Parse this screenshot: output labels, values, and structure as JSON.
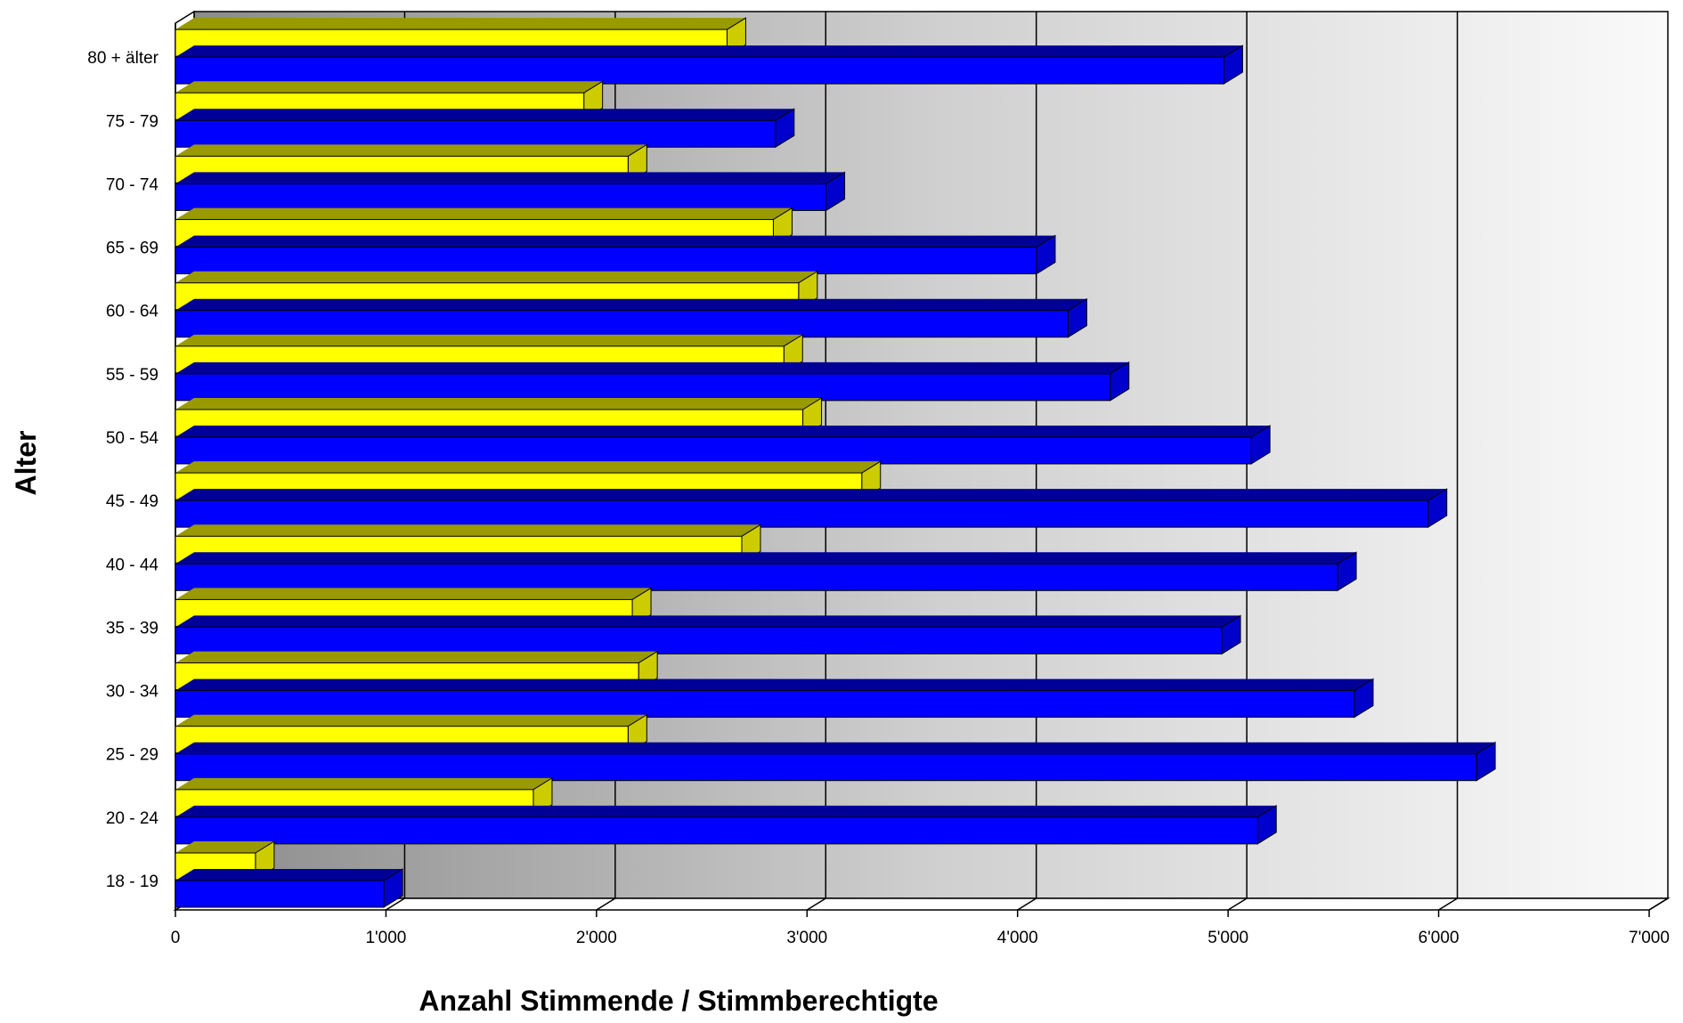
{
  "chart_data": {
    "type": "bar",
    "orientation": "horizontal",
    "style": "3d",
    "title": "",
    "xlabel": "Anzahl Stimmende / Stimmberechtigte",
    "ylabel": "Alter",
    "xlim": [
      0,
      7000
    ],
    "xticks": [
      0,
      1000,
      2000,
      3000,
      4000,
      5000,
      6000,
      7000
    ],
    "xtick_labels": [
      "0",
      "1'000",
      "2'000",
      "3'000",
      "4'000",
      "5'000",
      "6'000",
      "7'000"
    ],
    "grid": true,
    "legend": "none",
    "categories": [
      "18 - 19",
      "20 - 24",
      "25 - 29",
      "30 - 34",
      "35 - 39",
      "40 - 44",
      "45 - 49",
      "50 - 54",
      "55 - 59",
      "60 - 64",
      "65 - 69",
      "70 - 74",
      "75 - 79",
      "80 + älter"
    ],
    "series": [
      {
        "color": "#0000ff",
        "top_color": "#000099",
        "side_color": "#0000cc",
        "values": [
          990,
          5140,
          6180,
          5600,
          4970,
          5520,
          5950,
          5110,
          4440,
          4240,
          4090,
          3090,
          2850,
          4980
        ]
      },
      {
        "color": "#ffff00",
        "top_color": "#999900",
        "side_color": "#cccc00",
        "values": [
          380,
          1700,
          2150,
          2200,
          2170,
          2690,
          3260,
          2980,
          2890,
          2960,
          2840,
          2150,
          1940,
          2620
        ]
      }
    ]
  }
}
